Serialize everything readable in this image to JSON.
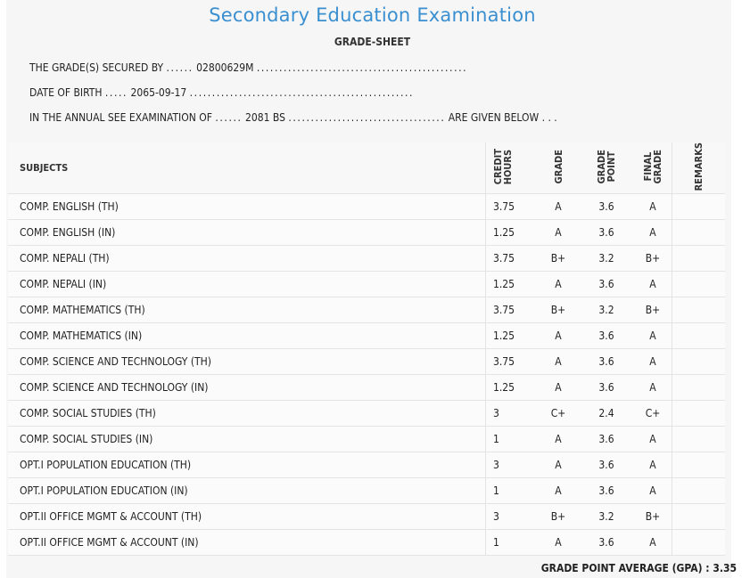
{
  "header": {
    "title": "Secondary Education Examination",
    "subtitle": "GRADE-SHEET"
  },
  "info": {
    "line1_prefix": "THE GRADE(S) SECURED BY",
    "line1_dots_a": "......",
    "symbol_no": "02800629M",
    "line1_dots_b": "...............................................",
    "line2_prefix": "DATE OF BIRTH",
    "line2_dots_a": ".....",
    "dob": "2065-09-17",
    "line2_dots_b": "..................................................",
    "line3_prefix": "IN THE ANNUAL SEE EXAMINATION OF",
    "line3_dots_a": "......",
    "year": "2081 BS",
    "line3_dots_b": "...................................",
    "line3_suffix": "ARE GIVEN BELOW . . ."
  },
  "table": {
    "headers": {
      "subjects": "SUBJECTS",
      "credit_hours": "CREDIT\nHOURS",
      "grade": "GRADE",
      "grade_point": "GRADE\nPOINT",
      "final_grade": "FINAL\nGRADE",
      "remarks": "REMARKS"
    },
    "rows": [
      {
        "subject": "COMP. ENGLISH (TH)",
        "credit": "3.75",
        "grade": "A",
        "point": "3.6",
        "final": "A",
        "remarks": ""
      },
      {
        "subject": "COMP. ENGLISH (IN)",
        "credit": "1.25",
        "grade": "A",
        "point": "3.6",
        "final": "A",
        "remarks": ""
      },
      {
        "subject": "COMP. NEPALI (TH)",
        "credit": "3.75",
        "grade": "B+",
        "point": "3.2",
        "final": "B+",
        "remarks": ""
      },
      {
        "subject": "COMP. NEPALI (IN)",
        "credit": "1.25",
        "grade": "A",
        "point": "3.6",
        "final": "A",
        "remarks": ""
      },
      {
        "subject": "COMP. MATHEMATICS (TH)",
        "credit": "3.75",
        "grade": "B+",
        "point": "3.2",
        "final": "B+",
        "remarks": ""
      },
      {
        "subject": "COMP. MATHEMATICS (IN)",
        "credit": "1.25",
        "grade": "A",
        "point": "3.6",
        "final": "A",
        "remarks": ""
      },
      {
        "subject": "COMP. SCIENCE AND TECHNOLOGY (TH)",
        "credit": "3.75",
        "grade": "A",
        "point": "3.6",
        "final": "A",
        "remarks": ""
      },
      {
        "subject": "COMP. SCIENCE AND TECHNOLOGY (IN)",
        "credit": "1.25",
        "grade": "A",
        "point": "3.6",
        "final": "A",
        "remarks": ""
      },
      {
        "subject": "COMP. SOCIAL STUDIES (TH)",
        "credit": "3",
        "grade": "C+",
        "point": "2.4",
        "final": "C+",
        "remarks": ""
      },
      {
        "subject": "COMP. SOCIAL STUDIES (IN)",
        "credit": "1",
        "grade": "A",
        "point": "3.6",
        "final": "A",
        "remarks": ""
      },
      {
        "subject": "OPT.I POPULATION EDUCATION (TH)",
        "credit": "3",
        "grade": "A",
        "point": "3.6",
        "final": "A",
        "remarks": ""
      },
      {
        "subject": "OPT.I POPULATION EDUCATION (IN)",
        "credit": "1",
        "grade": "A",
        "point": "3.6",
        "final": "A",
        "remarks": ""
      },
      {
        "subject": "OPT.II OFFICE MGMT & ACCOUNT (TH)",
        "credit": "3",
        "grade": "B+",
        "point": "3.2",
        "final": "B+",
        "remarks": ""
      },
      {
        "subject": "OPT.II OFFICE MGMT & ACCOUNT (IN)",
        "credit": "1",
        "grade": "A",
        "point": "3.6",
        "final": "A",
        "remarks": ""
      }
    ]
  },
  "gpa": {
    "label": "GRADE POINT AVERAGE (GPA) :",
    "value": "3.35"
  },
  "colors": {
    "title": "#3a8fd0",
    "background": "#f6f6f6"
  }
}
